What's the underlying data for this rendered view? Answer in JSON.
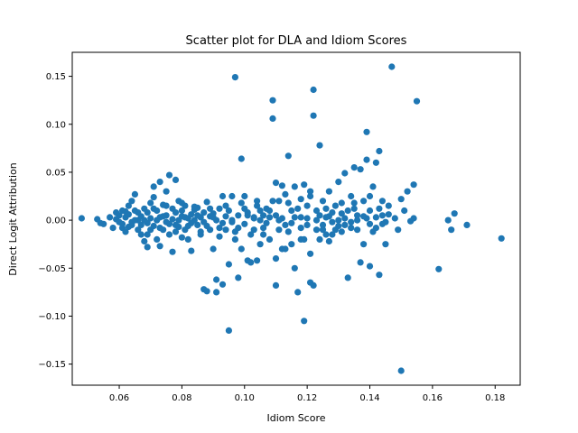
{
  "chart_data": {
    "type": "scatter",
    "title": "Scatter plot for DLA and Idiom Scores",
    "xlabel": "Idiom Score",
    "ylabel": "Direct Logit Attribution",
    "xlim": [
      0.045,
      0.188
    ],
    "ylim": [
      -0.172,
      0.175
    ],
    "x_ticks": [
      0.06,
      0.08,
      0.1,
      0.12,
      0.14,
      0.16,
      0.18
    ],
    "x_tick_labels": [
      "0.06",
      "0.08",
      "0.10",
      "0.12",
      "0.14",
      "0.16",
      "0.18"
    ],
    "y_ticks": [
      -0.15,
      -0.1,
      -0.05,
      0.0,
      0.05,
      0.1,
      0.15
    ],
    "y_tick_labels": [
      "−0.15",
      "−0.10",
      "−0.05",
      "0.00",
      "0.05",
      "0.10",
      "0.15"
    ],
    "grid": false,
    "point_color": "#1f77b4",
    "points": [
      [
        0.048,
        0.002
      ],
      [
        0.053,
        0.001
      ],
      [
        0.054,
        -0.003
      ],
      [
        0.055,
        -0.004
      ],
      [
        0.057,
        0.003
      ],
      [
        0.059,
        0.001
      ],
      [
        0.06,
        0.005
      ],
      [
        0.06,
        -0.002
      ],
      [
        0.061,
        0.01
      ],
      [
        0.061,
        -0.008
      ],
      [
        0.062,
        0.003
      ],
      [
        0.062,
        -0.012
      ],
      [
        0.063,
        0.015
      ],
      [
        0.063,
        0.006
      ],
      [
        0.064,
        -0.005
      ],
      [
        0.064,
        0.02
      ],
      [
        0.064,
        -0.002
      ],
      [
        0.065,
        0.027
      ],
      [
        0.065,
        0.01
      ],
      [
        0.066,
        -0.01
      ],
      [
        0.066,
        0.0
      ],
      [
        0.067,
        0.004
      ],
      [
        0.067,
        -0.015
      ],
      [
        0.068,
        -0.022
      ],
      [
        0.068,
        0.012
      ],
      [
        0.069,
        -0.028
      ],
      [
        0.069,
        0.008
      ],
      [
        0.069,
        -0.003
      ],
      [
        0.07,
        0.018
      ],
      [
        0.07,
        0.002
      ],
      [
        0.071,
        0.035
      ],
      [
        0.071,
        -0.006
      ],
      [
        0.071,
        0.024
      ],
      [
        0.072,
        -0.02
      ],
      [
        0.072,
        0.01
      ],
      [
        0.073,
        -0.027
      ],
      [
        0.073,
        0.003
      ],
      [
        0.073,
        0.04
      ],
      [
        0.074,
        0.016
      ],
      [
        0.074,
        -0.01
      ],
      [
        0.075,
        0.005
      ],
      [
        0.075,
        -0.002
      ],
      [
        0.075,
        0.03
      ],
      [
        0.076,
        0.047
      ],
      [
        0.076,
        -0.015
      ],
      [
        0.077,
        0.012
      ],
      [
        0.077,
        0.001
      ],
      [
        0.077,
        -0.033
      ],
      [
        0.078,
        0.042
      ],
      [
        0.078,
        0.008
      ],
      [
        0.078,
        -0.005
      ],
      [
        0.079,
        0.02
      ],
      [
        0.079,
        0.0
      ],
      [
        0.08,
        -0.018
      ],
      [
        0.08,
        0.01
      ],
      [
        0.08,
        0.004
      ],
      [
        0.081,
        -0.01
      ],
      [
        0.081,
        0.015
      ],
      [
        0.082,
        0.002
      ],
      [
        0.082,
        -0.02
      ],
      [
        0.083,
        0.006
      ],
      [
        0.083,
        -0.032
      ],
      [
        0.084,
        0.0
      ],
      [
        0.084,
        0.011
      ],
      [
        0.085,
        -0.005
      ],
      [
        0.085,
        0.013
      ],
      [
        0.086,
        0.003
      ],
      [
        0.086,
        -0.015
      ],
      [
        0.087,
        0.008
      ],
      [
        0.087,
        -0.072
      ],
      [
        0.087,
        -0.002
      ],
      [
        0.088,
        -0.074
      ],
      [
        0.088,
        0.019
      ],
      [
        0.089,
        -0.01
      ],
      [
        0.089,
        0.004
      ],
      [
        0.09,
        -0.03
      ],
      [
        0.09,
        0.007
      ],
      [
        0.091,
        -0.062
      ],
      [
        0.091,
        -0.075
      ],
      [
        0.091,
        0.0
      ],
      [
        0.092,
        -0.017
      ],
      [
        0.092,
        0.012
      ],
      [
        0.093,
        -0.067
      ],
      [
        0.093,
        0.025
      ],
      [
        0.094,
        -0.01
      ],
      [
        0.094,
        0.004
      ],
      [
        0.095,
        -0.046
      ],
      [
        0.095,
        -0.115
      ],
      [
        0.095,
        0.01
      ],
      [
        0.096,
        -0.002
      ],
      [
        0.096,
        0.025
      ],
      [
        0.097,
        0.149
      ],
      [
        0.097,
        -0.02
      ],
      [
        0.098,
        -0.06
      ],
      [
        0.098,
        0.005
      ],
      [
        0.099,
        0.064
      ],
      [
        0.099,
        -0.03
      ],
      [
        0.1,
        0.012
      ],
      [
        0.1,
        -0.004
      ],
      [
        0.1,
        0.025
      ],
      [
        0.101,
        -0.042
      ],
      [
        0.101,
        0.005
      ],
      [
        0.102,
        -0.044
      ],
      [
        0.102,
        -0.015
      ],
      [
        0.103,
        0.003
      ],
      [
        0.103,
        -0.01
      ],
      [
        0.104,
        0.02
      ],
      [
        0.104,
        -0.042
      ],
      [
        0.105,
        0.0
      ],
      [
        0.105,
        0.01
      ],
      [
        0.106,
        -0.015
      ],
      [
        0.106,
        0.005
      ],
      [
        0.107,
        -0.003
      ],
      [
        0.107,
        0.012
      ],
      [
        0.108,
        -0.02
      ],
      [
        0.108,
        0.003
      ],
      [
        0.109,
        0.106
      ],
      [
        0.109,
        0.125
      ],
      [
        0.11,
        0.039
      ],
      [
        0.11,
        -0.068
      ],
      [
        0.11,
        0.005
      ],
      [
        0.111,
        -0.01
      ],
      [
        0.111,
        0.02
      ],
      [
        0.112,
        -0.03
      ],
      [
        0.112,
        0.036
      ],
      [
        0.112,
        0.002
      ],
      [
        0.113,
        -0.03
      ],
      [
        0.113,
        0.027
      ],
      [
        0.114,
        0.067
      ],
      [
        0.114,
        -0.012
      ],
      [
        0.115,
        0.01
      ],
      [
        0.115,
        -0.003
      ],
      [
        0.116,
        0.035
      ],
      [
        0.116,
        -0.05
      ],
      [
        0.117,
        0.012
      ],
      [
        0.117,
        -0.075
      ],
      [
        0.118,
        0.003
      ],
      [
        0.118,
        -0.02
      ],
      [
        0.119,
        0.037
      ],
      [
        0.119,
        -0.105
      ],
      [
        0.12,
        0.015
      ],
      [
        0.12,
        -0.005
      ],
      [
        0.121,
        -0.035
      ],
      [
        0.121,
        0.025
      ],
      [
        0.121,
        -0.065
      ],
      [
        0.122,
        0.109
      ],
      [
        0.122,
        0.136
      ],
      [
        0.122,
        -0.068
      ],
      [
        0.123,
        0.01
      ],
      [
        0.123,
        -0.01
      ],
      [
        0.124,
        0.078
      ],
      [
        0.124,
        0.005
      ],
      [
        0.125,
        -0.005
      ],
      [
        0.125,
        0.02
      ],
      [
        0.126,
        -0.015
      ],
      [
        0.126,
        0.003
      ],
      [
        0.127,
        0.03
      ],
      [
        0.127,
        -0.022
      ],
      [
        0.128,
        0.008
      ],
      [
        0.128,
        -0.002
      ],
      [
        0.129,
        0.015
      ],
      [
        0.129,
        -0.01
      ],
      [
        0.13,
        0.04
      ],
      [
        0.13,
        0.0
      ],
      [
        0.131,
        -0.012
      ],
      [
        0.131,
        0.007
      ],
      [
        0.132,
        0.049
      ],
      [
        0.132,
        -0.005
      ],
      [
        0.133,
        0.01
      ],
      [
        0.133,
        -0.06
      ],
      [
        0.134,
        0.025
      ],
      [
        0.134,
        -0.002
      ],
      [
        0.135,
        0.055
      ],
      [
        0.135,
        0.018
      ],
      [
        0.136,
        -0.01
      ],
      [
        0.136,
        0.005
      ],
      [
        0.137,
        0.053
      ],
      [
        0.137,
        -0.044
      ],
      [
        0.138,
        0.02
      ],
      [
        0.138,
        -0.025
      ],
      [
        0.139,
        0.092
      ],
      [
        0.139,
        0.063
      ],
      [
        0.139,
        0.002
      ],
      [
        0.14,
        -0.048
      ],
      [
        0.14,
        0.01
      ],
      [
        0.141,
        0.035
      ],
      [
        0.141,
        -0.012
      ],
      [
        0.142,
        0.06
      ],
      [
        0.142,
        0.003
      ],
      [
        0.143,
        -0.057
      ],
      [
        0.143,
        0.072
      ],
      [
        0.144,
        0.02
      ],
      [
        0.144,
        0.005
      ],
      [
        0.145,
        -0.002
      ],
      [
        0.145,
        -0.025
      ],
      [
        0.146,
        0.015
      ],
      [
        0.147,
        0.16
      ],
      [
        0.148,
        0.002
      ],
      [
        0.149,
        -0.01
      ],
      [
        0.15,
        -0.157
      ],
      [
        0.15,
        0.022
      ],
      [
        0.151,
        0.01
      ],
      [
        0.152,
        0.03
      ],
      [
        0.153,
        -0.001
      ],
      [
        0.154,
        0.037
      ],
      [
        0.155,
        0.124
      ],
      [
        0.154,
        0.002
      ],
      [
        0.162,
        -0.051
      ],
      [
        0.165,
        0.0
      ],
      [
        0.166,
        -0.01
      ],
      [
        0.167,
        0.007
      ],
      [
        0.171,
        -0.005
      ],
      [
        0.182,
        -0.019
      ],
      [
        0.058,
        -0.008
      ],
      [
        0.059,
        0.008
      ],
      [
        0.061,
        -0.004
      ],
      [
        0.062,
        0.009
      ],
      [
        0.063,
        -0.007
      ],
      [
        0.065,
        0.0
      ],
      [
        0.066,
        0.008
      ],
      [
        0.067,
        -0.005
      ],
      [
        0.068,
        0.0
      ],
      [
        0.07,
        -0.01
      ],
      [
        0.072,
        0.0
      ],
      [
        0.074,
        0.004
      ],
      [
        0.076,
        -0.004
      ],
      [
        0.079,
        -0.007
      ],
      [
        0.081,
        0.003
      ],
      [
        0.083,
        -0.003
      ],
      [
        0.085,
        0.005
      ],
      [
        0.088,
        -0.006
      ],
      [
        0.09,
        0.003
      ],
      [
        0.093,
        -0.003
      ],
      [
        0.096,
        0.0
      ],
      [
        0.098,
        -0.008
      ],
      [
        0.101,
        0.008
      ],
      [
        0.103,
        0.002
      ],
      [
        0.106,
        -0.008
      ],
      [
        0.108,
        0.01
      ],
      [
        0.111,
        0.0
      ],
      [
        0.113,
        -0.005
      ],
      [
        0.116,
        0.003
      ],
      [
        0.118,
        -0.008
      ],
      [
        0.12,
        0.002
      ],
      [
        0.123,
        0.0
      ],
      [
        0.125,
        -0.01
      ],
      [
        0.127,
        0.004
      ],
      [
        0.13,
        -0.006
      ],
      [
        0.132,
        0.002
      ],
      [
        0.134,
        -0.008
      ],
      [
        0.136,
        0.0
      ],
      [
        0.138,
        0.004
      ],
      [
        0.14,
        -0.004
      ],
      [
        0.142,
        -0.008
      ],
      [
        0.144,
        -0.004
      ],
      [
        0.146,
        0.006
      ],
      [
        0.105,
        -0.025
      ],
      [
        0.11,
        -0.04
      ],
      [
        0.115,
        -0.025
      ],
      [
        0.119,
        -0.02
      ],
      [
        0.124,
        -0.02
      ],
      [
        0.128,
        -0.015
      ],
      [
        0.097,
        -0.012
      ],
      [
        0.092,
        -0.008
      ],
      [
        0.086,
        -0.012
      ],
      [
        0.082,
        -0.006
      ],
      [
        0.078,
        -0.012
      ],
      [
        0.073,
        -0.008
      ],
      [
        0.069,
        -0.015
      ],
      [
        0.071,
        0.012
      ],
      [
        0.075,
        0.015
      ],
      [
        0.08,
        0.018
      ],
      [
        0.084,
        0.014
      ],
      [
        0.089,
        0.012
      ],
      [
        0.094,
        0.015
      ],
      [
        0.099,
        0.018
      ],
      [
        0.104,
        0.015
      ],
      [
        0.109,
        0.02
      ],
      [
        0.114,
        0.018
      ],
      [
        0.118,
        0.022
      ],
      [
        0.121,
        0.03
      ],
      [
        0.126,
        0.012
      ],
      [
        0.131,
        0.018
      ],
      [
        0.135,
        0.012
      ],
      [
        0.14,
        0.025
      ],
      [
        0.143,
        0.012
      ]
    ]
  }
}
